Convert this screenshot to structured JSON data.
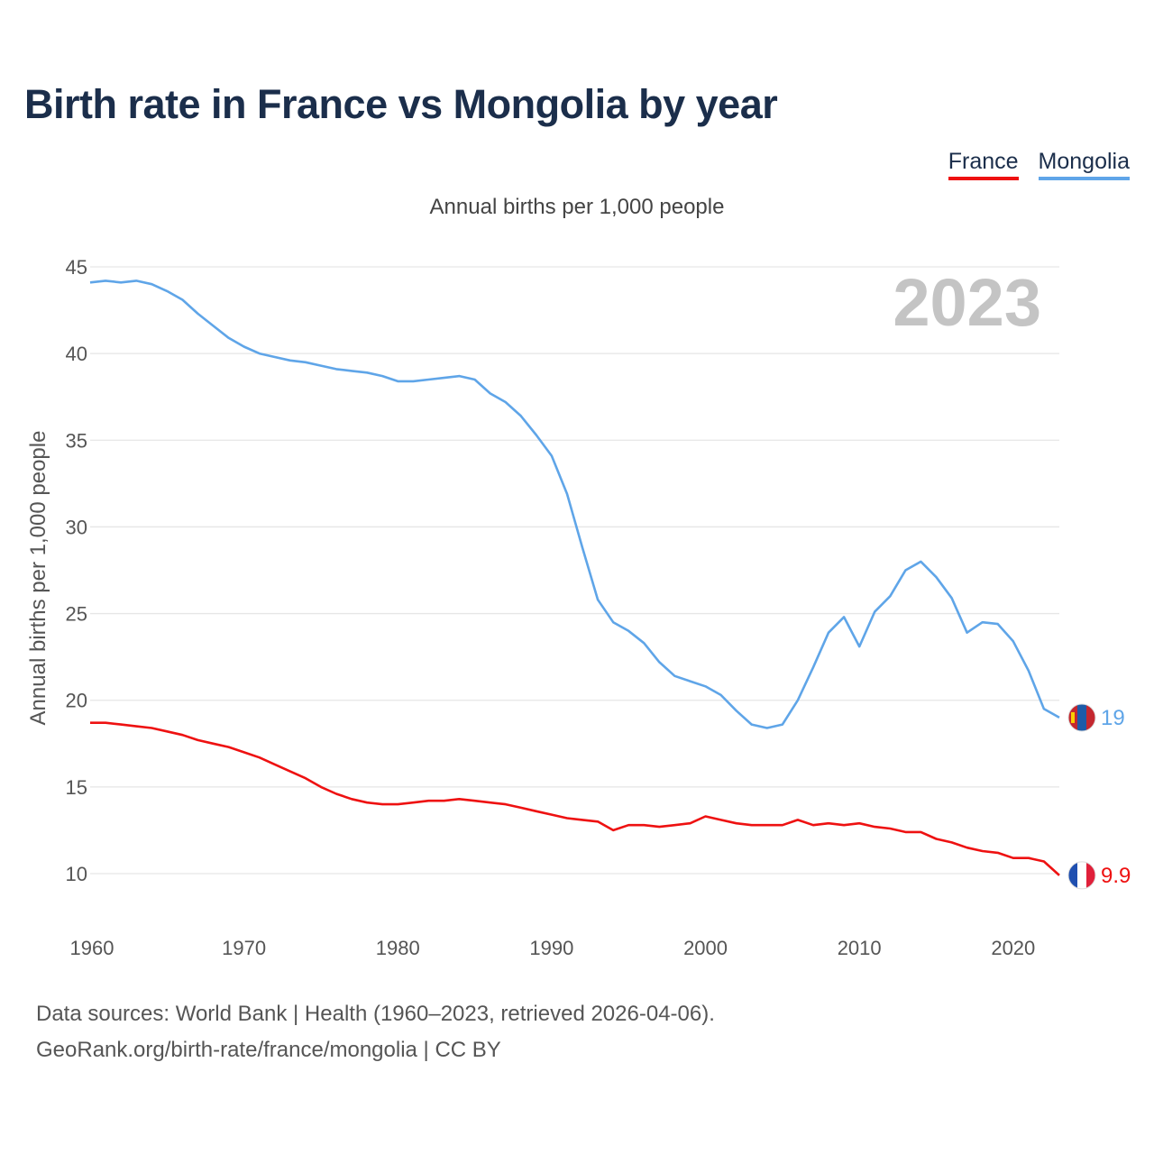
{
  "title": "Birth rate in France vs Mongolia by year",
  "subtitle": "Annual births per 1,000 people",
  "legend": [
    {
      "label": "France",
      "color": "#ee1111"
    },
    {
      "label": "Mongolia",
      "color": "#5fa5e8"
    }
  ],
  "footer": {
    "line1": "Data sources: World Bank | Health (1960–2023, retrieved 2026-04-06).",
    "line2": "GeoRank.org/birth-rate/france/mongolia | CC BY"
  },
  "chart_data": {
    "type": "line",
    "title": "Birth rate in France vs Mongolia by year",
    "ylabel": "Annual births per 1,000 people",
    "xlabel": "",
    "xlim": [
      1960,
      2023
    ],
    "ylim": [
      8,
      46
    ],
    "x_ticks": [
      "1960",
      "1970",
      "1980",
      "1990",
      "2000",
      "2010",
      "2020"
    ],
    "y_ticks": [
      "10",
      "15",
      "20",
      "25",
      "30",
      "35",
      "40",
      "45"
    ],
    "grid": true,
    "year_label": "2023",
    "x": [
      1960,
      1961,
      1962,
      1963,
      1964,
      1965,
      1966,
      1967,
      1968,
      1969,
      1970,
      1971,
      1972,
      1973,
      1974,
      1975,
      1976,
      1977,
      1978,
      1979,
      1980,
      1981,
      1982,
      1983,
      1984,
      1985,
      1986,
      1987,
      1988,
      1989,
      1990,
      1991,
      1992,
      1993,
      1994,
      1995,
      1996,
      1997,
      1998,
      1999,
      2000,
      2001,
      2002,
      2003,
      2004,
      2005,
      2006,
      2007,
      2008,
      2009,
      2010,
      2011,
      2012,
      2013,
      2014,
      2015,
      2016,
      2017,
      2018,
      2019,
      2020,
      2021,
      2022,
      2023
    ],
    "series": [
      {
        "name": "France",
        "color": "#ee1111",
        "end_label": "9.9",
        "flag": "france-flag",
        "values": [
          18.7,
          18.7,
          18.6,
          18.5,
          18.4,
          18.2,
          18.0,
          17.7,
          17.5,
          17.3,
          17.0,
          16.7,
          16.3,
          15.9,
          15.5,
          15.0,
          14.6,
          14.3,
          14.1,
          14.0,
          14.0,
          14.1,
          14.2,
          14.2,
          14.3,
          14.2,
          14.1,
          14.0,
          13.8,
          13.6,
          13.4,
          13.2,
          13.1,
          13.0,
          12.5,
          12.8,
          12.8,
          12.7,
          12.8,
          12.9,
          13.3,
          13.1,
          12.9,
          12.8,
          12.8,
          12.8,
          13.1,
          12.8,
          12.9,
          12.8,
          12.9,
          12.7,
          12.6,
          12.4,
          12.4,
          12.0,
          11.8,
          11.5,
          11.3,
          11.2,
          10.9,
          10.9,
          10.7,
          9.9
        ]
      },
      {
        "name": "Mongolia",
        "color": "#5fa5e8",
        "end_label": "19",
        "flag": "mongolia-flag",
        "values": [
          44.1,
          44.2,
          44.1,
          44.2,
          44.0,
          43.6,
          43.1,
          42.3,
          41.6,
          40.9,
          40.4,
          40.0,
          39.8,
          39.6,
          39.5,
          39.3,
          39.1,
          39.0,
          38.9,
          38.7,
          38.4,
          38.4,
          38.5,
          38.6,
          38.7,
          38.5,
          37.7,
          37.2,
          36.4,
          35.3,
          34.1,
          31.9,
          28.8,
          25.8,
          24.5,
          24.0,
          23.3,
          22.2,
          21.4,
          21.1,
          20.8,
          20.3,
          19.4,
          18.6,
          18.4,
          18.6,
          20.0,
          21.9,
          23.9,
          24.8,
          23.1,
          25.1,
          26.0,
          27.5,
          28.0,
          27.1,
          25.9,
          23.9,
          24.5,
          24.4,
          23.4,
          21.7,
          19.5,
          19.0
        ]
      }
    ]
  }
}
